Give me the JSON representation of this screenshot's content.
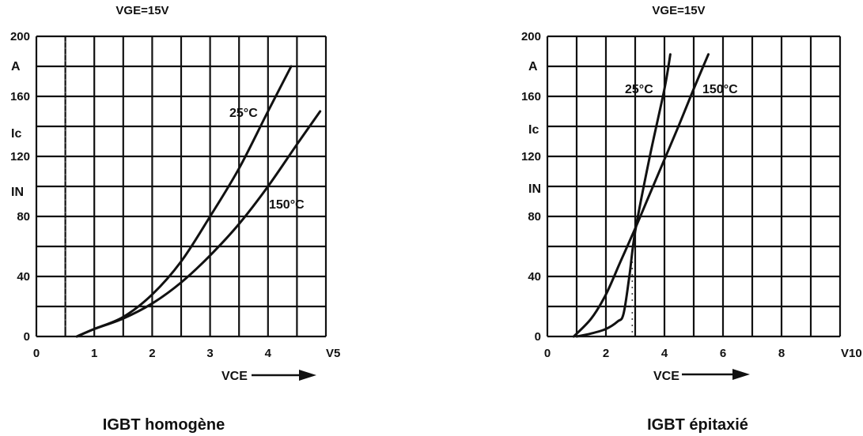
{
  "chart_data": [
    {
      "type": "line",
      "title": "VGE=15V",
      "caption": "IGBT homogène",
      "xlabel": "VCE",
      "ylabel_lines": [
        "A",
        "Ic",
        "IN"
      ],
      "x_end_label": "V5",
      "xlim": [
        0,
        5
      ],
      "ylim": [
        0,
        200
      ],
      "x_ticks": [
        0,
        1,
        2,
        3,
        4
      ],
      "y_ticks": [
        0,
        40,
        80,
        120,
        160,
        200
      ],
      "grid": true,
      "series": [
        {
          "name": "25°C",
          "x": [
            0.7,
            1,
            1.5,
            2,
            2.5,
            3,
            3.5,
            4,
            4.4
          ],
          "y": [
            0,
            5,
            13,
            28,
            50,
            80,
            112,
            150,
            180
          ]
        },
        {
          "name": "150°C",
          "x": [
            0.7,
            1,
            1.5,
            2,
            2.5,
            3,
            3.5,
            4,
            4.5,
            4.9
          ],
          "y": [
            0,
            5,
            12,
            22,
            36,
            54,
            75,
            100,
            128,
            150
          ]
        }
      ],
      "dashed_vline_x": 0.5
    },
    {
      "type": "line",
      "title": "VGE=15V",
      "caption": "IGBT épitaxié",
      "xlabel": "VCE",
      "ylabel_lines": [
        "A",
        "Ic",
        "IN"
      ],
      "x_end_label": "V10",
      "xlim": [
        0,
        10
      ],
      "ylim": [
        0,
        200
      ],
      "x_ticks": [
        0,
        2,
        4,
        6,
        8
      ],
      "y_ticks": [
        0,
        40,
        80,
        120,
        160,
        200
      ],
      "y_tick_labels": [
        "0",
        "40",
        "80",
        "120",
        "160",
        "200"
      ],
      "grid": true,
      "series": [
        {
          "name": "25°C",
          "x": [
            1.0,
            1.5,
            2.0,
            2.4,
            2.6,
            2.8,
            3.0,
            3.5,
            4.0,
            4.2
          ],
          "y": [
            0,
            2,
            5,
            10,
            15,
            40,
            70,
            120,
            165,
            188
          ]
        },
        {
          "name": "150°C",
          "x": [
            0.9,
            1.5,
            2.0,
            2.5,
            3.0,
            3.5,
            4.0,
            4.5,
            5.0,
            5.5
          ],
          "y": [
            0,
            12,
            28,
            50,
            72,
            95,
            118,
            141,
            165,
            188
          ]
        }
      ],
      "dashed_vline_x": 2.9
    }
  ]
}
